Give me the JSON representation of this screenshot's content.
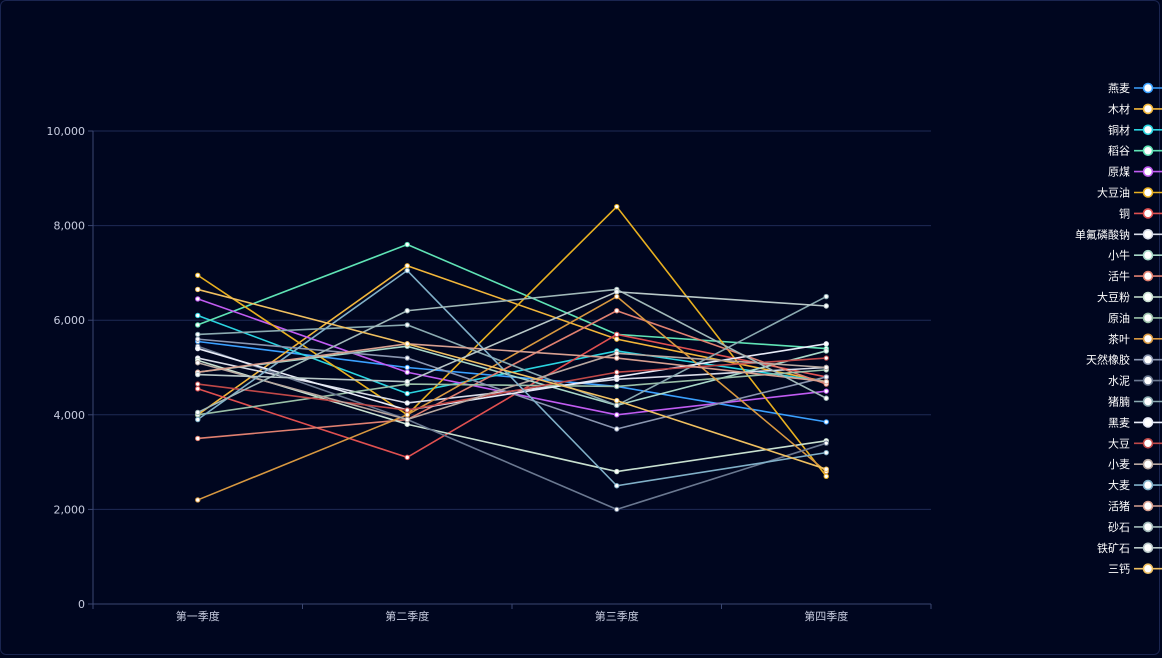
{
  "chart_data": {
    "type": "line",
    "categories": [
      "第一季度",
      "第二季度",
      "第三季度",
      "第四季度"
    ],
    "ylim": [
      0,
      10000
    ],
    "yticks": [
      0,
      2000,
      4000,
      6000,
      8000,
      10000
    ],
    "ytick_labels": [
      "0",
      "2,000",
      "4,000",
      "6,000",
      "8,000",
      "10,000"
    ],
    "grid": true,
    "legend_position": "right",
    "series": [
      {
        "name": "燕麦",
        "color": "#3aa0ff",
        "values": [
          5550,
          5000,
          4600,
          3850
        ]
      },
      {
        "name": "木材",
        "color": "#f2b63a",
        "values": [
          4000,
          7150,
          5600,
          4700
        ]
      },
      {
        "name": "铜材",
        "color": "#2ad4e0",
        "values": [
          6100,
          4450,
          5350,
          4700
        ]
      },
      {
        "name": "稻谷",
        "color": "#5fe3b5",
        "values": [
          5900,
          7600,
          5700,
          5400
        ]
      },
      {
        "name": "原煤",
        "color": "#c15cf2",
        "values": [
          6450,
          4900,
          4000,
          4500
        ]
      },
      {
        "name": "大豆油",
        "color": "#e8b020",
        "values": [
          6950,
          4000,
          8400,
          2700
        ]
      },
      {
        "name": "铜",
        "color": "#e05050",
        "values": [
          4550,
          3100,
          5700,
          4800
        ]
      },
      {
        "name": "单氟磷酸钠",
        "color": "#d8dce8",
        "values": [
          5200,
          4250,
          4750,
          5000
        ]
      },
      {
        "name": "小牛",
        "color": "#a8d8c8",
        "values": [
          4900,
          5450,
          4200,
          5350
        ]
      },
      {
        "name": "活牛",
        "color": "#e08070",
        "values": [
          3500,
          3900,
          6200,
          4650
        ]
      },
      {
        "name": "大豆粉",
        "color": "#c8e0d0",
        "values": [
          5150,
          3800,
          2800,
          3450
        ]
      },
      {
        "name": "原油",
        "color": "#9ac0a8",
        "values": [
          4000,
          4650,
          4600,
          4950
        ]
      },
      {
        "name": "茶叶",
        "color": "#d89840",
        "values": [
          2200,
          4000,
          6500,
          2800
        ]
      },
      {
        "name": "天然橡胶",
        "color": "#8a96b0",
        "values": [
          5600,
          5200,
          3700,
          4800
        ]
      },
      {
        "name": "水泥",
        "color": "#6a7890",
        "values": [
          5450,
          3900,
          2000,
          3400
        ]
      },
      {
        "name": "猪腩",
        "color": "#8aaab0",
        "values": [
          5700,
          5900,
          4200,
          6500
        ]
      },
      {
        "name": "黑麦",
        "color": "#e8ecf8",
        "values": [
          5400,
          4100,
          4800,
          5500
        ]
      },
      {
        "name": "大豆",
        "color": "#c04848",
        "values": [
          4650,
          4100,
          4900,
          5200
        ]
      },
      {
        "name": "小麦",
        "color": "#b8a8a0",
        "values": [
          5100,
          3900,
          5300,
          5000
        ]
      },
      {
        "name": "大麦",
        "color": "#80b0c8",
        "values": [
          3900,
          7050,
          2500,
          3200
        ]
      },
      {
        "name": "活猪",
        "color": "#d8a090",
        "values": [
          4900,
          5500,
          5200,
          4700
        ]
      },
      {
        "name": "砂石",
        "color": "#a0b8b8",
        "values": [
          4050,
          6200,
          6650,
          4350
        ]
      },
      {
        "name": "铁矿石",
        "color": "#b8c8c8",
        "values": [
          4850,
          4700,
          6600,
          6300
        ]
      },
      {
        "name": "三钙",
        "color": "#f0c060",
        "values": [
          6650,
          5500,
          4300,
          2850
        ]
      }
    ]
  }
}
